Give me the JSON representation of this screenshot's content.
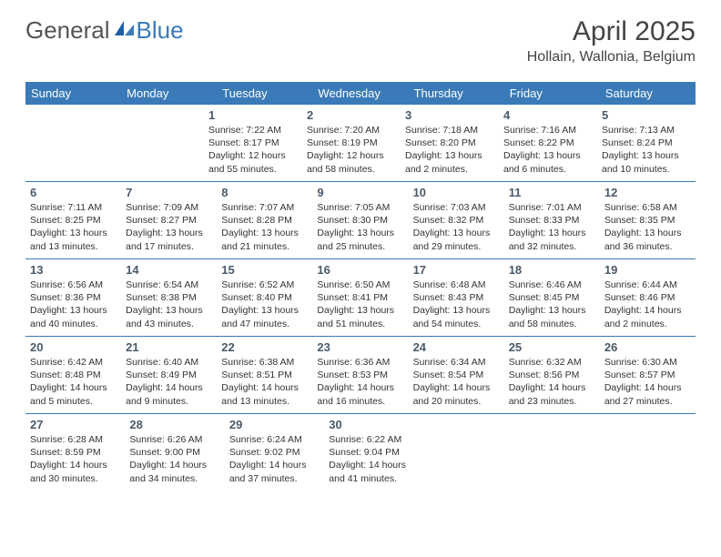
{
  "logo": {
    "part1": "General",
    "part2": "Blue"
  },
  "title": "April 2025",
  "location": "Hollain, Wallonia, Belgium",
  "header_bg": "#3a7ab8",
  "border_color": "#3a7ab8",
  "day_headers": [
    "Sunday",
    "Monday",
    "Tuesday",
    "Wednesday",
    "Thursday",
    "Friday",
    "Saturday"
  ],
  "weeks": [
    [
      {
        "empty": true
      },
      {
        "empty": true
      },
      {
        "num": "1",
        "sunrise": "7:22 AM",
        "sunset": "8:17 PM",
        "daylight": "12 hours and 55 minutes."
      },
      {
        "num": "2",
        "sunrise": "7:20 AM",
        "sunset": "8:19 PM",
        "daylight": "12 hours and 58 minutes."
      },
      {
        "num": "3",
        "sunrise": "7:18 AM",
        "sunset": "8:20 PM",
        "daylight": "13 hours and 2 minutes."
      },
      {
        "num": "4",
        "sunrise": "7:16 AM",
        "sunset": "8:22 PM",
        "daylight": "13 hours and 6 minutes."
      },
      {
        "num": "5",
        "sunrise": "7:13 AM",
        "sunset": "8:24 PM",
        "daylight": "13 hours and 10 minutes."
      }
    ],
    [
      {
        "num": "6",
        "sunrise": "7:11 AM",
        "sunset": "8:25 PM",
        "daylight": "13 hours and 13 minutes."
      },
      {
        "num": "7",
        "sunrise": "7:09 AM",
        "sunset": "8:27 PM",
        "daylight": "13 hours and 17 minutes."
      },
      {
        "num": "8",
        "sunrise": "7:07 AM",
        "sunset": "8:28 PM",
        "daylight": "13 hours and 21 minutes."
      },
      {
        "num": "9",
        "sunrise": "7:05 AM",
        "sunset": "8:30 PM",
        "daylight": "13 hours and 25 minutes."
      },
      {
        "num": "10",
        "sunrise": "7:03 AM",
        "sunset": "8:32 PM",
        "daylight": "13 hours and 29 minutes."
      },
      {
        "num": "11",
        "sunrise": "7:01 AM",
        "sunset": "8:33 PM",
        "daylight": "13 hours and 32 minutes."
      },
      {
        "num": "12",
        "sunrise": "6:58 AM",
        "sunset": "8:35 PM",
        "daylight": "13 hours and 36 minutes."
      }
    ],
    [
      {
        "num": "13",
        "sunrise": "6:56 AM",
        "sunset": "8:36 PM",
        "daylight": "13 hours and 40 minutes."
      },
      {
        "num": "14",
        "sunrise": "6:54 AM",
        "sunset": "8:38 PM",
        "daylight": "13 hours and 43 minutes."
      },
      {
        "num": "15",
        "sunrise": "6:52 AM",
        "sunset": "8:40 PM",
        "daylight": "13 hours and 47 minutes."
      },
      {
        "num": "16",
        "sunrise": "6:50 AM",
        "sunset": "8:41 PM",
        "daylight": "13 hours and 51 minutes."
      },
      {
        "num": "17",
        "sunrise": "6:48 AM",
        "sunset": "8:43 PM",
        "daylight": "13 hours and 54 minutes."
      },
      {
        "num": "18",
        "sunrise": "6:46 AM",
        "sunset": "8:45 PM",
        "daylight": "13 hours and 58 minutes."
      },
      {
        "num": "19",
        "sunrise": "6:44 AM",
        "sunset": "8:46 PM",
        "daylight": "14 hours and 2 minutes."
      }
    ],
    [
      {
        "num": "20",
        "sunrise": "6:42 AM",
        "sunset": "8:48 PM",
        "daylight": "14 hours and 5 minutes."
      },
      {
        "num": "21",
        "sunrise": "6:40 AM",
        "sunset": "8:49 PM",
        "daylight": "14 hours and 9 minutes."
      },
      {
        "num": "22",
        "sunrise": "6:38 AM",
        "sunset": "8:51 PM",
        "daylight": "14 hours and 13 minutes."
      },
      {
        "num": "23",
        "sunrise": "6:36 AM",
        "sunset": "8:53 PM",
        "daylight": "14 hours and 16 minutes."
      },
      {
        "num": "24",
        "sunrise": "6:34 AM",
        "sunset": "8:54 PM",
        "daylight": "14 hours and 20 minutes."
      },
      {
        "num": "25",
        "sunrise": "6:32 AM",
        "sunset": "8:56 PM",
        "daylight": "14 hours and 23 minutes."
      },
      {
        "num": "26",
        "sunrise": "6:30 AM",
        "sunset": "8:57 PM",
        "daylight": "14 hours and 27 minutes."
      }
    ],
    [
      {
        "num": "27",
        "sunrise": "6:28 AM",
        "sunset": "8:59 PM",
        "daylight": "14 hours and 30 minutes."
      },
      {
        "num": "28",
        "sunrise": "6:26 AM",
        "sunset": "9:00 PM",
        "daylight": "14 hours and 34 minutes."
      },
      {
        "num": "29",
        "sunrise": "6:24 AM",
        "sunset": "9:02 PM",
        "daylight": "14 hours and 37 minutes."
      },
      {
        "num": "30",
        "sunrise": "6:22 AM",
        "sunset": "9:04 PM",
        "daylight": "14 hours and 41 minutes."
      },
      {
        "empty": true
      },
      {
        "empty": true
      },
      {
        "empty": true
      }
    ]
  ]
}
